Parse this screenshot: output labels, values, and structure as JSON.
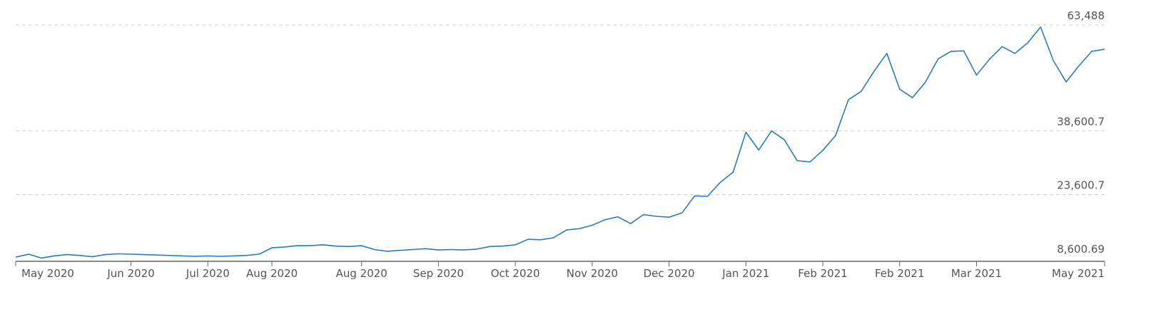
{
  "chart_data": {
    "type": "line",
    "color": "#2b7bbb",
    "grid": true,
    "ylim": [
      8600.69,
      63488
    ],
    "yticks": [
      {
        "value": 8600.69,
        "label": "8,600.69"
      },
      {
        "value": 23600.7,
        "label": "23,600.7"
      },
      {
        "value": 38600.7,
        "label": "38,600.7"
      },
      {
        "value": 63488,
        "label": "63,488"
      }
    ],
    "categories": [
      "May 2020",
      null,
      null,
      null,
      null,
      null,
      null,
      null,
      null,
      "Jun 2020",
      null,
      null,
      null,
      null,
      null,
      "Jul 2020",
      null,
      null,
      null,
      null,
      "Aug 2020",
      null,
      null,
      null,
      null,
      null,
      null,
      "Aug 2020",
      null,
      null,
      null,
      null,
      null,
      "Sep 2020",
      null,
      null,
      null,
      null,
      null,
      "Oct 2020",
      null,
      null,
      null,
      null,
      null,
      "Nov 2020",
      null,
      null,
      null,
      null,
      null,
      "Dec 2020",
      null,
      null,
      null,
      null,
      null,
      "Jan 2021",
      null,
      null,
      null,
      null,
      null,
      "Feb 2021",
      null,
      null,
      null,
      null,
      null,
      "Feb 2021",
      null,
      null,
      null,
      null,
      null,
      "Mar 2021",
      null,
      null,
      null,
      null,
      null,
      null,
      null,
      null,
      null,
      "May 2021"
    ],
    "values": [
      8900,
      9600,
      8700,
      9200,
      9500,
      9300,
      9000,
      9500,
      9700,
      9600,
      9500,
      9400,
      9300,
      9200,
      9100,
      9200,
      9100,
      9200,
      9300,
      9600,
      11100,
      11300,
      11600,
      11600,
      11800,
      11500,
      11400,
      11600,
      10700,
      10300,
      10500,
      10700,
      10900,
      10600,
      10700,
      10600,
      10800,
      11400,
      11500,
      11800,
      13100,
      13000,
      13500,
      15300,
      15600,
      16400,
      17700,
      18400,
      16800,
      18900,
      18500,
      18300,
      19300,
      23300,
      23200,
      26500,
      28900,
      38300,
      34100,
      38600,
      36500,
      31600,
      31300,
      34000,
      37500,
      45900,
      47900,
      52600,
      56800,
      48400,
      46400,
      50000,
      55500,
      57300,
      57400,
      51700,
      55400,
      58400,
      56800,
      59300,
      63000,
      55100,
      50100,
      53900,
      57300,
      57800
    ]
  }
}
